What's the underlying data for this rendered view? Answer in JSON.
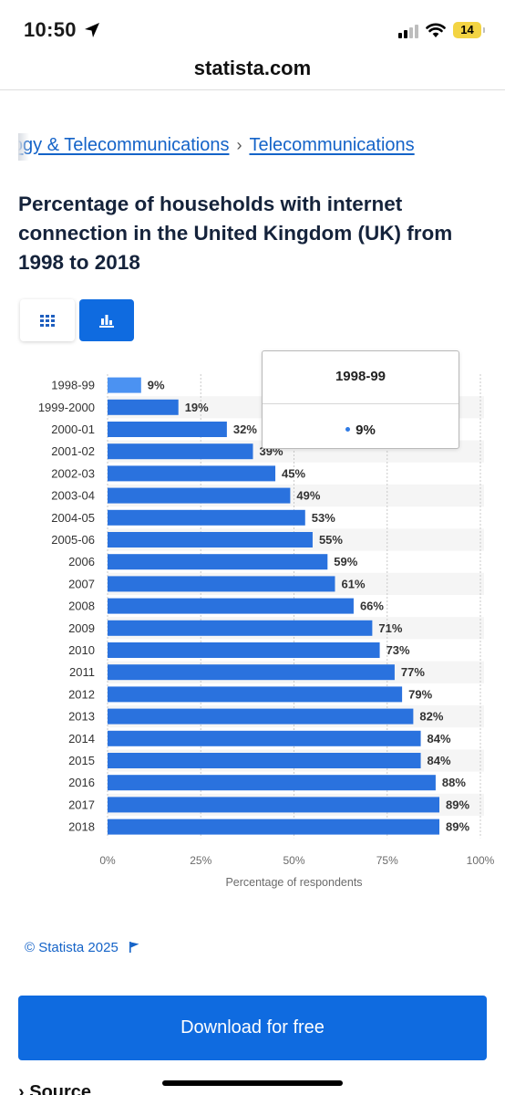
{
  "status_bar": {
    "time": "10:50",
    "battery": "14"
  },
  "browser": {
    "url": "statista.com"
  },
  "breadcrumb": [
    "Technology & Telecommunications",
    "Telecommunications"
  ],
  "breadcrumb_sep": "›",
  "title": "Percentage of households with internet connection in the United Kingdom (UK) from 1998 to 2018",
  "toggles": {
    "table_icon": "grid-icon",
    "chart_icon": "bar-chart-icon",
    "active": "chart"
  },
  "tooltip": {
    "title": "1998-99",
    "value": "9%"
  },
  "chart_data": {
    "type": "bar",
    "orientation": "horizontal",
    "categories": [
      "1998-99",
      "1999-2000",
      "2000-01",
      "2001-02",
      "2002-03",
      "2003-04",
      "2004-05",
      "2005-06",
      "2006",
      "2007",
      "2008",
      "2009",
      "2010",
      "2011",
      "2012",
      "2013",
      "2014",
      "2015",
      "2016",
      "2017",
      "2018"
    ],
    "values": [
      9,
      19,
      32,
      39,
      45,
      49,
      53,
      55,
      59,
      61,
      66,
      71,
      73,
      77,
      79,
      82,
      84,
      84,
      88,
      89,
      89
    ],
    "value_suffix": "%",
    "xlabel": "Percentage of respondents",
    "xticks": [
      "0%",
      "25%",
      "50%",
      "75%",
      "100%"
    ],
    "xlim": [
      0,
      100
    ],
    "highlighted_index": 0,
    "bar_color": "#2a72de",
    "highlight_color": "#4b92f2"
  },
  "footer": {
    "copyright": "© Statista 2025",
    "download_label": "Download for free",
    "source_label": "Source"
  }
}
